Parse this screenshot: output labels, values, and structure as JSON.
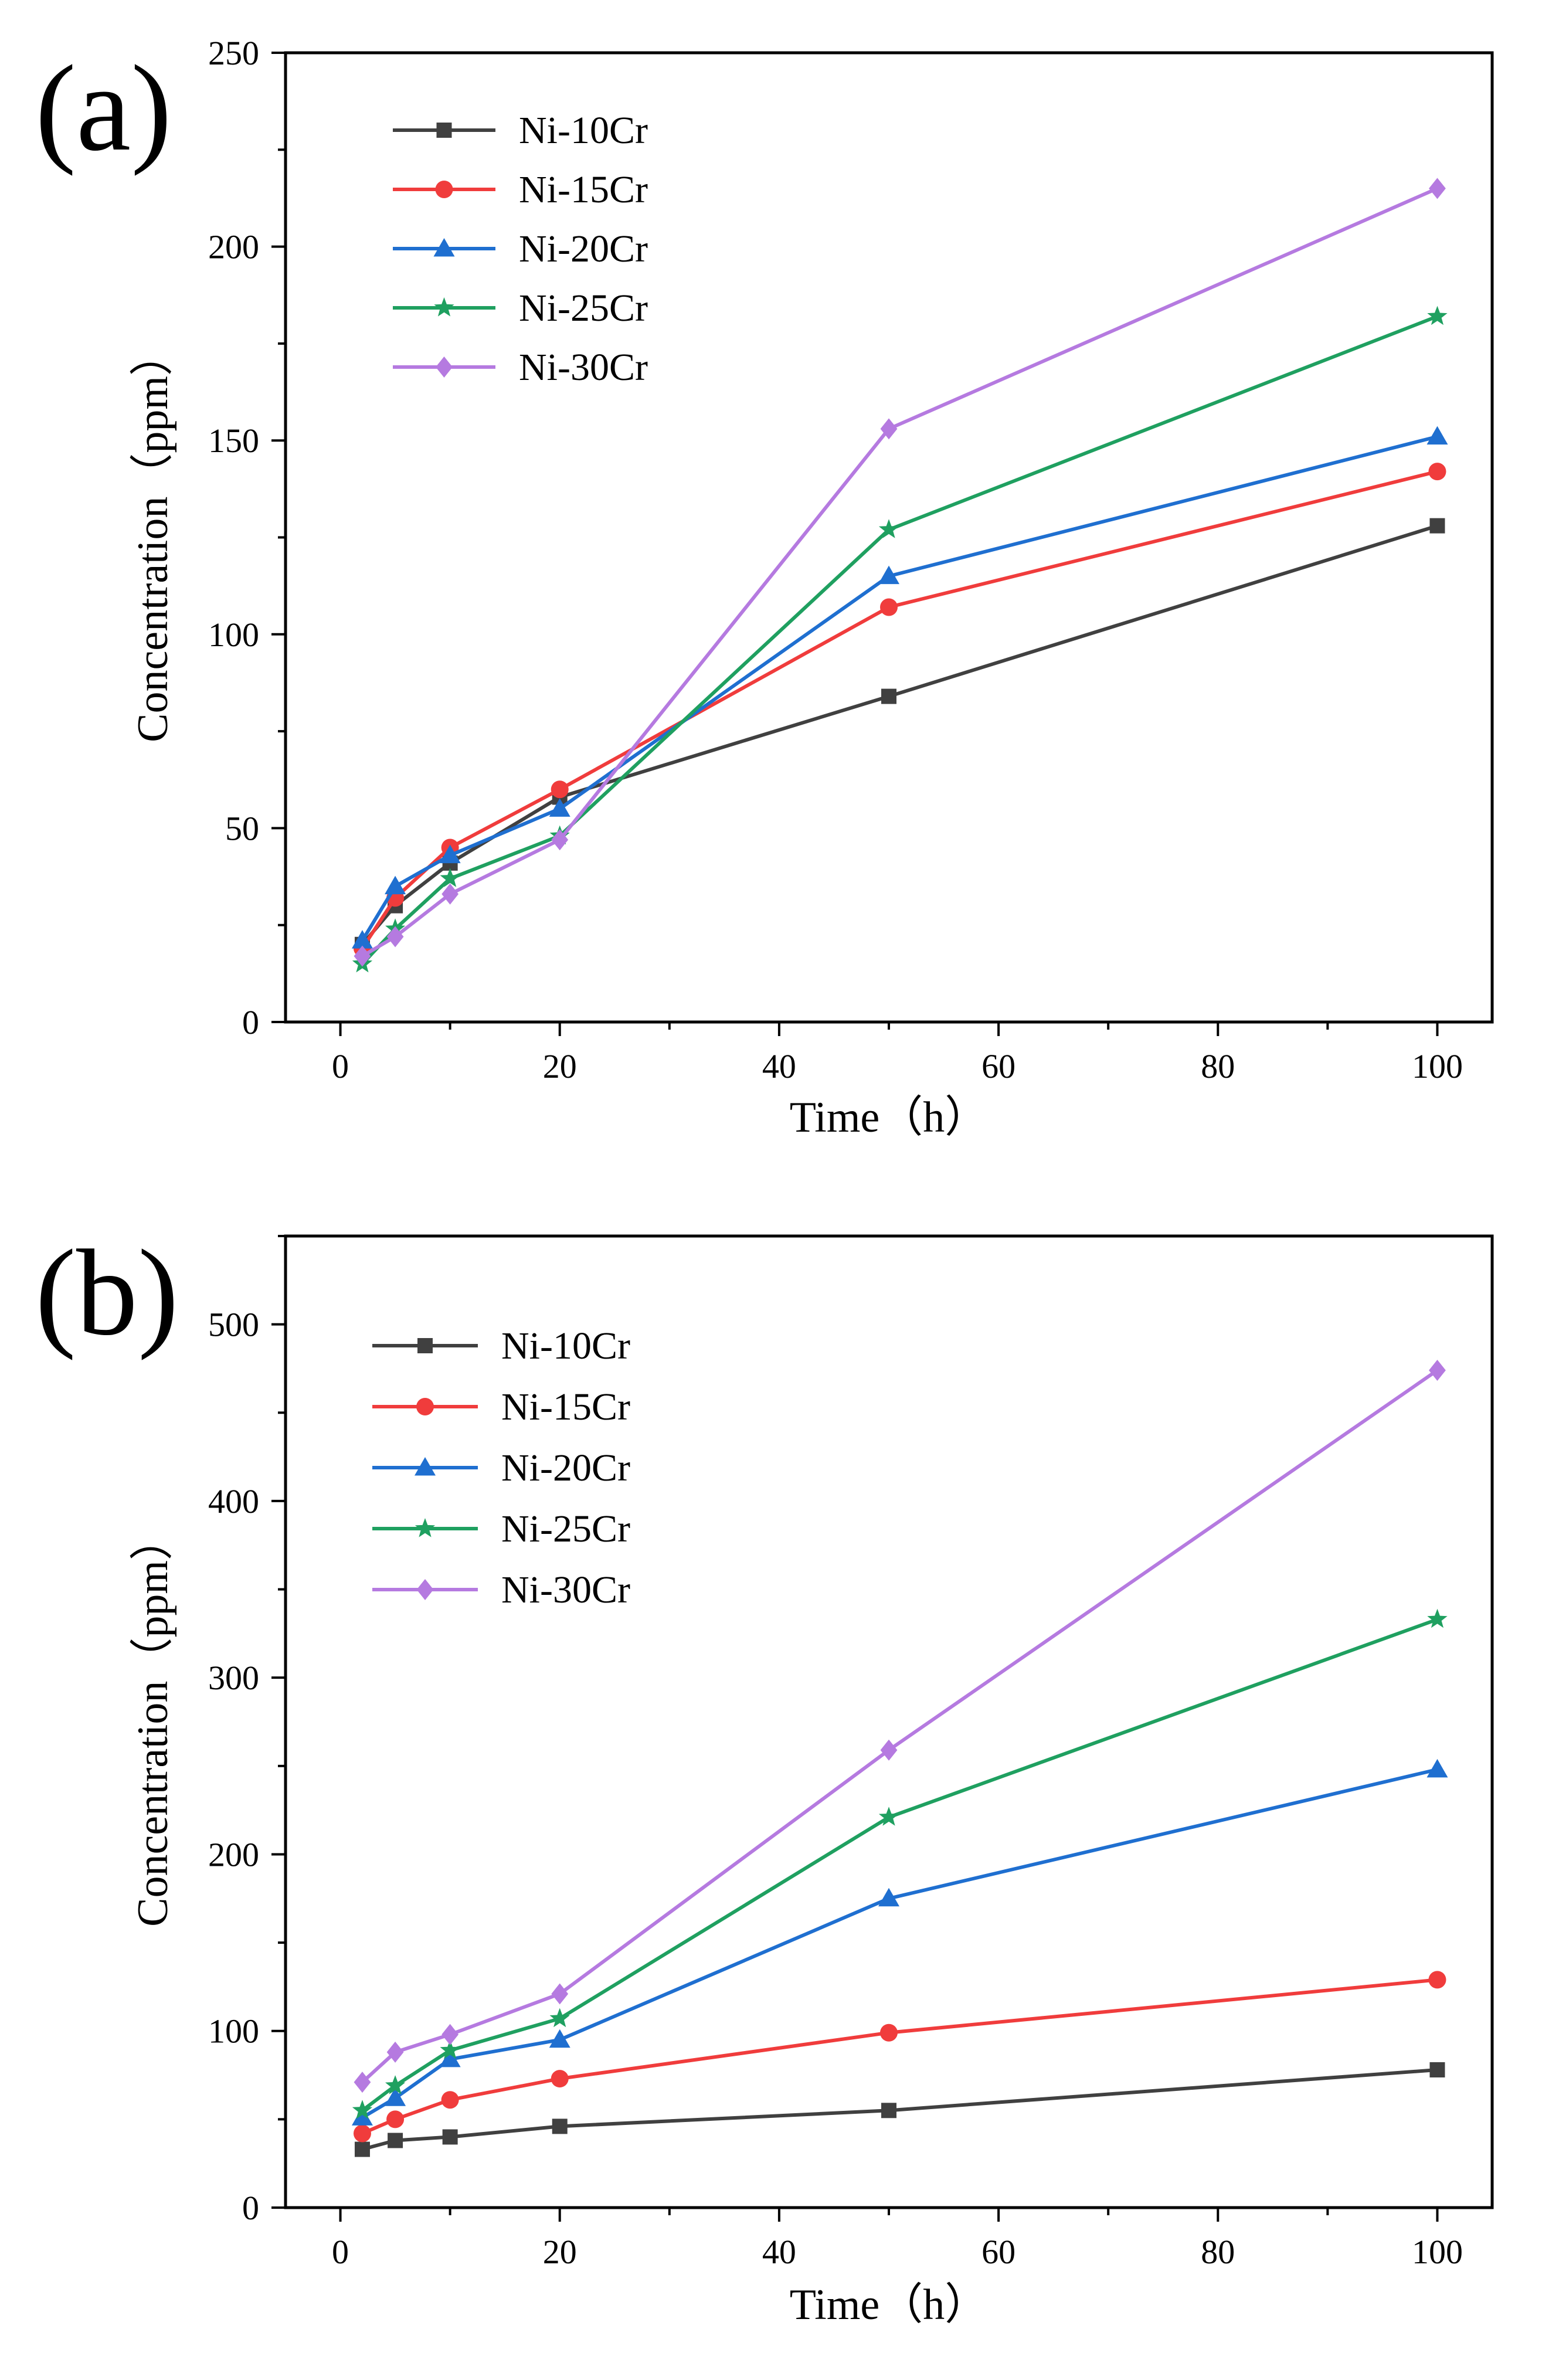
{
  "chart_data": [
    {
      "type": "line",
      "panel_label": "(a)",
      "xlabel": "Time（h）",
      "ylabel": "Concentration（ppm）",
      "xlim": [
        -5,
        105
      ],
      "ylim": [
        0,
        250
      ],
      "xticks": [
        0,
        20,
        40,
        60,
        80,
        100
      ],
      "yticks": [
        0,
        50,
        100,
        150,
        200,
        250
      ],
      "grid": false,
      "legend_position": "top-left",
      "x": [
        2,
        5,
        10,
        20,
        50,
        100
      ],
      "series": [
        {
          "name": "Ni-10Cr",
          "color": "#404040",
          "marker": "square",
          "values": [
            20,
            30,
            41,
            58,
            84,
            128
          ]
        },
        {
          "name": "Ni-15Cr",
          "color": "#f03c3c",
          "marker": "circle",
          "values": [
            19,
            32,
            45,
            60,
            107,
            142
          ]
        },
        {
          "name": "Ni-20Cr",
          "color": "#1f6fd0",
          "marker": "triangle",
          "values": [
            21,
            35,
            43,
            55,
            115,
            151
          ]
        },
        {
          "name": "Ni-25Cr",
          "color": "#1fa060",
          "marker": "star",
          "values": [
            15,
            24,
            37,
            48,
            127,
            182
          ]
        },
        {
          "name": "Ni-30Cr",
          "color": "#b57ae0",
          "marker": "diamond",
          "values": [
            17,
            22,
            33,
            47,
            153,
            215
          ]
        }
      ]
    },
    {
      "type": "line",
      "panel_label": "(b)",
      "xlabel": "Time（h）",
      "ylabel": "Concentration（ppm）",
      "xlim": [
        -5,
        105
      ],
      "ylim": [
        0,
        550
      ],
      "xticks": [
        0,
        20,
        40,
        60,
        80,
        100
      ],
      "yticks": [
        0,
        100,
        200,
        300,
        400,
        500
      ],
      "grid": false,
      "legend_position": "top-left",
      "x": [
        2,
        5,
        10,
        20,
        50,
        100
      ],
      "series": [
        {
          "name": "Ni-10Cr",
          "color": "#404040",
          "marker": "square",
          "values": [
            33,
            38,
            40,
            46,
            55,
            78
          ]
        },
        {
          "name": "Ni-15Cr",
          "color": "#f03c3c",
          "marker": "circle",
          "values": [
            42,
            50,
            61,
            73,
            99,
            129
          ]
        },
        {
          "name": "Ni-20Cr",
          "color": "#1f6fd0",
          "marker": "triangle",
          "values": [
            51,
            62,
            84,
            95,
            175,
            248
          ]
        },
        {
          "name": "Ni-25Cr",
          "color": "#1fa060",
          "marker": "star",
          "values": [
            55,
            69,
            89,
            107,
            221,
            333
          ]
        },
        {
          "name": "Ni-30Cr",
          "color": "#b57ae0",
          "marker": "diamond",
          "values": [
            71,
            88,
            98,
            121,
            259,
            474
          ]
        }
      ]
    }
  ]
}
